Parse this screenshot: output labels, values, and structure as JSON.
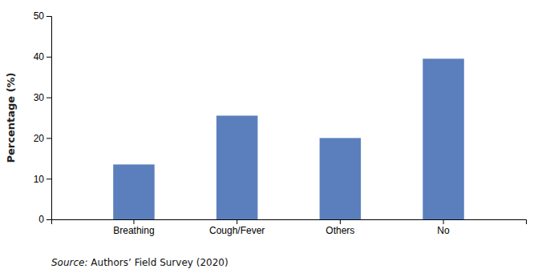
{
  "chart_data": {
    "type": "bar",
    "categories": [
      "Breathing",
      "Cough/Fever",
      "Others",
      "No"
    ],
    "values": [
      13.5,
      25.5,
      20,
      39.5
    ],
    "color": "#5b7fbc",
    "ylabel": "Percentage (%)",
    "ylim": [
      0,
      50
    ],
    "yticks": [
      0,
      10,
      20,
      30,
      40,
      50
    ],
    "annotations": [
      "Source:",
      " Authors’ Field Survey (2020)"
    ],
    "grid": false
  }
}
